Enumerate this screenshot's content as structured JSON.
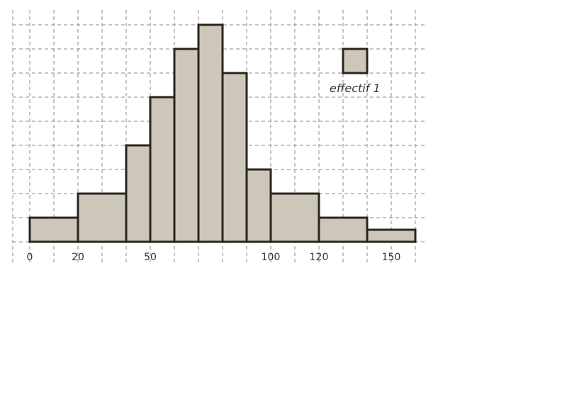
{
  "chart_data": {
    "type": "histogram",
    "title": "",
    "xlabel": "",
    "ylabel": "",
    "xlim": [
      0,
      160
    ],
    "ylim": [
      0,
      9
    ],
    "grid": true,
    "x_tick_labels": [
      {
        "value": 0,
        "label": "0"
      },
      {
        "value": 20,
        "label": "20"
      },
      {
        "value": 50,
        "label": "50"
      },
      {
        "value": 100,
        "label": "100"
      },
      {
        "value": 120,
        "label": "120"
      },
      {
        "value": 150,
        "label": "150"
      }
    ],
    "bins": [
      {
        "start": 0,
        "end": 20,
        "density": 1
      },
      {
        "start": 20,
        "end": 40,
        "density": 2
      },
      {
        "start": 40,
        "end": 50,
        "density": 4
      },
      {
        "start": 50,
        "end": 60,
        "density": 6
      },
      {
        "start": 60,
        "end": 70,
        "density": 8
      },
      {
        "start": 70,
        "end": 80,
        "density": 9
      },
      {
        "start": 80,
        "end": 90,
        "density": 7
      },
      {
        "start": 90,
        "end": 100,
        "density": 3
      },
      {
        "start": 100,
        "end": 120,
        "density": 2
      },
      {
        "start": 120,
        "end": 140,
        "density": 1
      },
      {
        "start": 140,
        "end": 160,
        "density": 0.5
      }
    ],
    "legend": {
      "label": "effectif 1",
      "placement": "top-right",
      "square_width": 10,
      "square_height": 1
    },
    "colors": {
      "bar_fill": "#cdc7ba",
      "bar_stroke": "#2a241e",
      "grid": "#8a8a8a"
    }
  }
}
